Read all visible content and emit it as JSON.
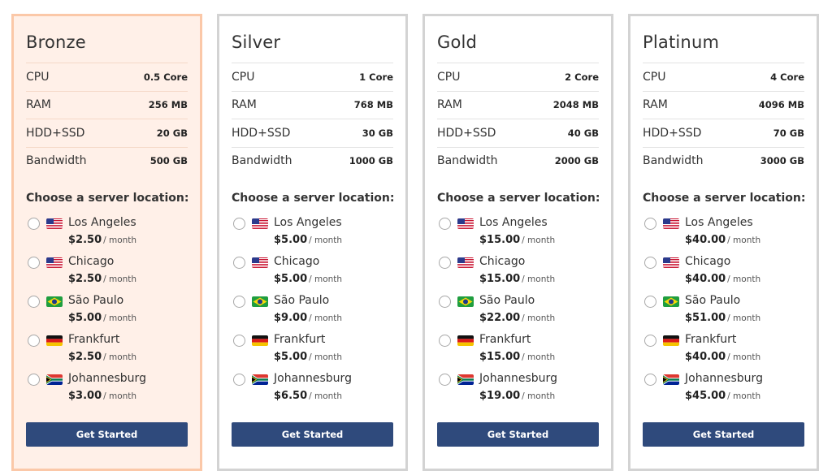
{
  "plans": [
    {
      "name": "Bronze",
      "featured": true,
      "specs": [
        {
          "label": "CPU",
          "value": "0.5 Core"
        },
        {
          "label": "RAM",
          "value": "256 MB"
        },
        {
          "label": "HDD+SSD",
          "value": "20 GB"
        },
        {
          "label": "Bandwidth",
          "value": "500 GB"
        }
      ],
      "location_heading": "Choose a server location:",
      "locations": [
        {
          "name": "Los Angeles",
          "flag": "us-flag-icon",
          "price": "$2.50",
          "period": "/ month"
        },
        {
          "name": "Chicago",
          "flag": "us-flag-icon",
          "price": "$2.50",
          "period": "/ month"
        },
        {
          "name": "São Paulo",
          "flag": "brazil-flag-icon",
          "price": "$5.00",
          "period": "/ month"
        },
        {
          "name": "Frankfurt",
          "flag": "germany-flag-icon",
          "price": "$2.50",
          "period": "/ month"
        },
        {
          "name": "Johannesburg",
          "flag": "south-africa-flag-icon",
          "price": "$3.00",
          "period": "/ month"
        }
      ],
      "cta": "Get Started"
    },
    {
      "name": "Silver",
      "featured": false,
      "specs": [
        {
          "label": "CPU",
          "value": "1 Core"
        },
        {
          "label": "RAM",
          "value": "768 MB"
        },
        {
          "label": "HDD+SSD",
          "value": "30 GB"
        },
        {
          "label": "Bandwidth",
          "value": "1000 GB"
        }
      ],
      "location_heading": "Choose a server location:",
      "locations": [
        {
          "name": "Los Angeles",
          "flag": "us-flag-icon",
          "price": "$5.00",
          "period": "/ month"
        },
        {
          "name": "Chicago",
          "flag": "us-flag-icon",
          "price": "$5.00",
          "period": "/ month"
        },
        {
          "name": "São Paulo",
          "flag": "brazil-flag-icon",
          "price": "$9.00",
          "period": "/ month"
        },
        {
          "name": "Frankfurt",
          "flag": "germany-flag-icon",
          "price": "$5.00",
          "period": "/ month"
        },
        {
          "name": "Johannesburg",
          "flag": "south-africa-flag-icon",
          "price": "$6.50",
          "period": "/ month"
        }
      ],
      "cta": "Get Started"
    },
    {
      "name": "Gold",
      "featured": false,
      "specs": [
        {
          "label": "CPU",
          "value": "2 Core"
        },
        {
          "label": "RAM",
          "value": "2048 MB"
        },
        {
          "label": "HDD+SSD",
          "value": "40 GB"
        },
        {
          "label": "Bandwidth",
          "value": "2000 GB"
        }
      ],
      "location_heading": "Choose a server location:",
      "locations": [
        {
          "name": "Los Angeles",
          "flag": "us-flag-icon",
          "price": "$15.00",
          "period": "/ month"
        },
        {
          "name": "Chicago",
          "flag": "us-flag-icon",
          "price": "$15.00",
          "period": "/ month"
        },
        {
          "name": "São Paulo",
          "flag": "brazil-flag-icon",
          "price": "$22.00",
          "period": "/ month"
        },
        {
          "name": "Frankfurt",
          "flag": "germany-flag-icon",
          "price": "$15.00",
          "period": "/ month"
        },
        {
          "name": "Johannesburg",
          "flag": "south-africa-flag-icon",
          "price": "$19.00",
          "period": "/ month"
        }
      ],
      "cta": "Get Started"
    },
    {
      "name": "Platinum",
      "featured": false,
      "specs": [
        {
          "label": "CPU",
          "value": "4 Core"
        },
        {
          "label": "RAM",
          "value": "4096 MB"
        },
        {
          "label": "HDD+SSD",
          "value": "70 GB"
        },
        {
          "label": "Bandwidth",
          "value": "3000 GB"
        }
      ],
      "location_heading": "Choose a server location:",
      "locations": [
        {
          "name": "Los Angeles",
          "flag": "us-flag-icon",
          "price": "$40.00",
          "period": "/ month"
        },
        {
          "name": "Chicago",
          "flag": "us-flag-icon",
          "price": "$40.00",
          "period": "/ month"
        },
        {
          "name": "São Paulo",
          "flag": "brazil-flag-icon",
          "price": "$51.00",
          "period": "/ month"
        },
        {
          "name": "Frankfurt",
          "flag": "germany-flag-icon",
          "price": "$40.00",
          "period": "/ month"
        },
        {
          "name": "Johannesburg",
          "flag": "south-africa-flag-icon",
          "price": "$45.00",
          "period": "/ month"
        }
      ],
      "cta": "Get Started"
    }
  ],
  "colors": {
    "button": "#2f4a7c",
    "featured_bg": "#fff0e8",
    "featured_border": "#fbc8a8",
    "card_border": "#d3d3d3"
  }
}
